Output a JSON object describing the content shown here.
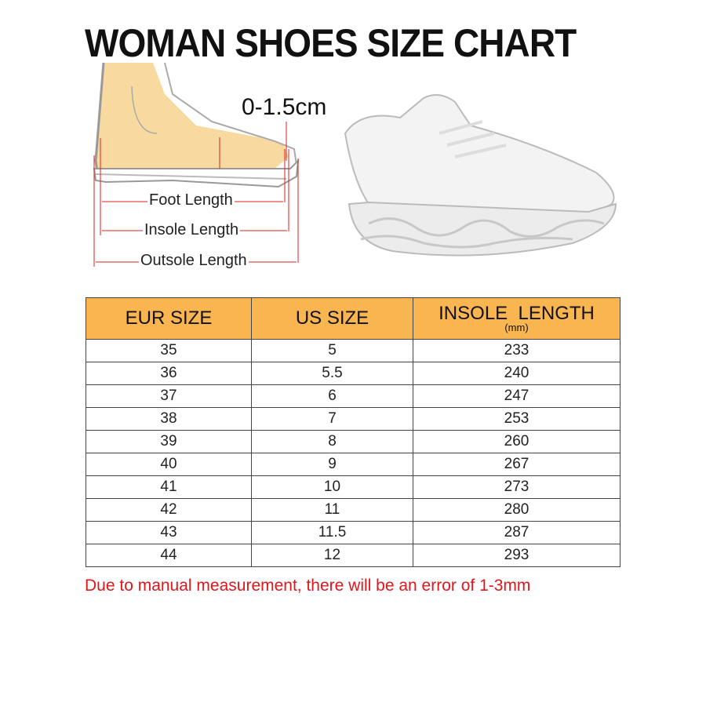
{
  "title": "WOMAN SHOES SIZE CHART",
  "diagram": {
    "gap_label": "0-1.5cm",
    "foot_length": "Foot Length",
    "insole_length": "Insole Length",
    "outsole_length": "Outsole Length"
  },
  "table": {
    "headers": [
      "EUR SIZE",
      "US SIZE",
      "INSOLE  LENGTH"
    ],
    "header_unit": "(mm)",
    "header_color": "#f9b550",
    "rows": [
      [
        "35",
        "5",
        "233"
      ],
      [
        "36",
        "5.5",
        "240"
      ],
      [
        "37",
        "6",
        "247"
      ],
      [
        "38",
        "7",
        "253"
      ],
      [
        "39",
        "8",
        "260"
      ],
      [
        "40",
        "9",
        "267"
      ],
      [
        "41",
        "10",
        "273"
      ],
      [
        "42",
        "11",
        "280"
      ],
      [
        "43",
        "11.5",
        "287"
      ],
      [
        "44",
        "12",
        "293"
      ]
    ]
  },
  "note": "Due to manual measurement, there will be an error of 1-3mm",
  "note_color": "#e0161b"
}
